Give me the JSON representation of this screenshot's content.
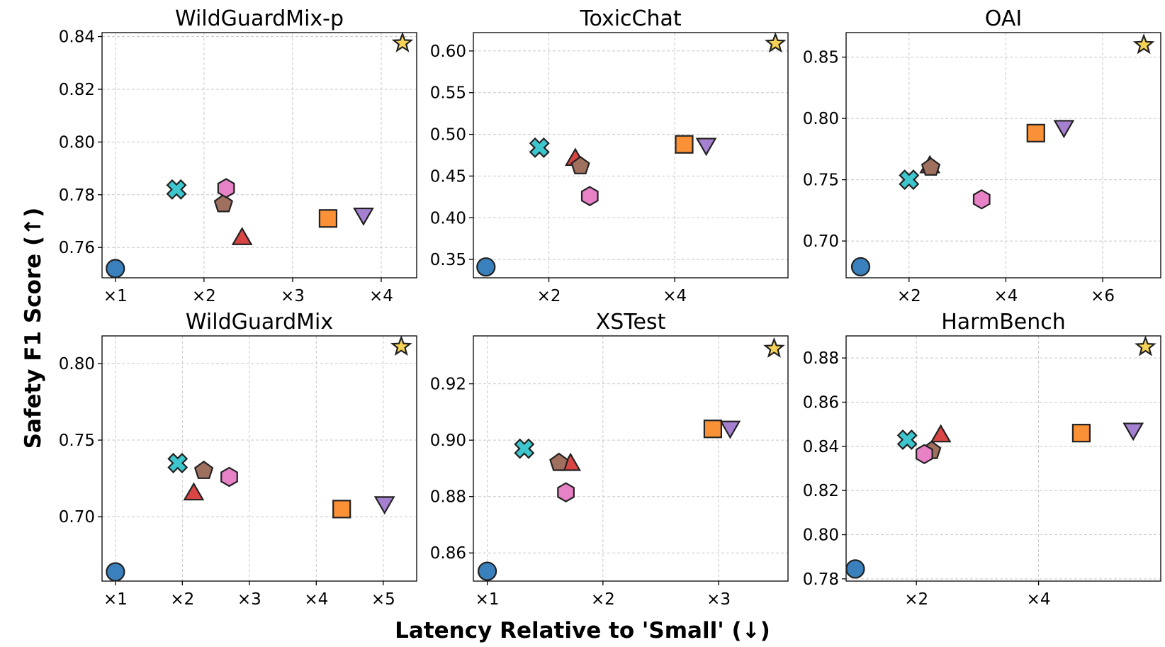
{
  "chart_data": {
    "type": "scatter",
    "xlabel": "Latency Relative to 'Small' (↓)",
    "ylabel": "Safety F1 Score (↑)",
    "series_styles": [
      {
        "key": "s1",
        "marker": "circle",
        "color": "#3a80bd"
      },
      {
        "key": "s2",
        "marker": "x",
        "color": "#3ec6ce"
      },
      {
        "key": "s3",
        "marker": "triangle-up",
        "color": "#d94545"
      },
      {
        "key": "s4",
        "marker": "pentagon",
        "color": "#a0705f"
      },
      {
        "key": "s5",
        "marker": "hexagon",
        "color": "#e882c7"
      },
      {
        "key": "s6",
        "marker": "square",
        "color": "#fb9136"
      },
      {
        "key": "s7",
        "marker": "triangle-down",
        "color": "#a680d0"
      },
      {
        "key": "s8",
        "marker": "star",
        "color": "#f6d256"
      }
    ],
    "panels": [
      {
        "title": "WildGuardMix-p",
        "xlim": [
          0.85,
          4.4
        ],
        "ylim": [
          0.7485,
          0.8415
        ],
        "xticks": [
          1,
          2,
          3,
          4
        ],
        "xtick_labels": [
          "×1",
          "×2",
          "×3",
          "×4"
        ],
        "yticks": [
          0.76,
          0.78,
          0.8,
          0.82,
          0.84
        ],
        "ytick_labels": [
          "0.76",
          "0.78",
          "0.80",
          "0.82",
          "0.84"
        ],
        "points": [
          {
            "series": "s1",
            "x": 1.0,
            "y": 0.752
          },
          {
            "series": "s2",
            "x": 1.69,
            "y": 0.782
          },
          {
            "series": "s3",
            "x": 2.43,
            "y": 0.764
          },
          {
            "series": "s4",
            "x": 2.22,
            "y": 0.7765
          },
          {
            "series": "s5",
            "x": 2.25,
            "y": 0.7825
          },
          {
            "series": "s6",
            "x": 3.4,
            "y": 0.771
          },
          {
            "series": "s7",
            "x": 3.8,
            "y": 0.772
          },
          {
            "series": "s8",
            "x": 4.24,
            "y": 0.8375
          }
        ]
      },
      {
        "title": "ToxicChat",
        "xlim": [
          0.8,
          5.8
        ],
        "ylim": [
          0.328,
          0.622
        ],
        "xticks": [
          2,
          4
        ],
        "xtick_labels": [
          "×2",
          "×4"
        ],
        "yticks": [
          0.35,
          0.4,
          0.45,
          0.5,
          0.55,
          0.6
        ],
        "ytick_labels": [
          "0.35",
          "0.40",
          "0.45",
          "0.50",
          "0.55",
          "0.60"
        ],
        "points": [
          {
            "series": "s1",
            "x": 1.0,
            "y": 0.341
          },
          {
            "series": "s2",
            "x": 1.85,
            "y": 0.484
          },
          {
            "series": "s3",
            "x": 2.42,
            "y": 0.472
          },
          {
            "series": "s4",
            "x": 2.5,
            "y": 0.462
          },
          {
            "series": "s5",
            "x": 2.65,
            "y": 0.426
          },
          {
            "series": "s6",
            "x": 4.15,
            "y": 0.488
          },
          {
            "series": "s7",
            "x": 4.5,
            "y": 0.486
          },
          {
            "series": "s8",
            "x": 5.6,
            "y": 0.609
          }
        ]
      },
      {
        "title": "OAI",
        "xlim": [
          0.7,
          7.2
        ],
        "ylim": [
          0.67,
          0.87
        ],
        "xticks": [
          2,
          4,
          6
        ],
        "xtick_labels": [
          "×2",
          "×4",
          "×6"
        ],
        "yticks": [
          0.7,
          0.75,
          0.8,
          0.85
        ],
        "ytick_labels": [
          "0.70",
          "0.75",
          "0.80",
          "0.85"
        ],
        "points": [
          {
            "series": "s1",
            "x": 1.0,
            "y": 0.679
          },
          {
            "series": "s2",
            "x": 2.0,
            "y": 0.75
          },
          {
            "series": "s3",
            "x": 2.43,
            "y": 0.762
          },
          {
            "series": "s4",
            "x": 2.45,
            "y": 0.76
          },
          {
            "series": "s5",
            "x": 3.5,
            "y": 0.734
          },
          {
            "series": "s6",
            "x": 4.62,
            "y": 0.788
          },
          {
            "series": "s7",
            "x": 5.2,
            "y": 0.792
          },
          {
            "series": "s8",
            "x": 6.85,
            "y": 0.86
          }
        ]
      },
      {
        "title": "WildGuardMix",
        "xlim": [
          0.8,
          5.5
        ],
        "ylim": [
          0.658,
          0.818
        ],
        "xticks": [
          1,
          2,
          3,
          4,
          5
        ],
        "xtick_labels": [
          "×1",
          "×2",
          "×3",
          "×4",
          "×5"
        ],
        "yticks": [
          0.7,
          0.75,
          0.8
        ],
        "ytick_labels": [
          "0.70",
          "0.75",
          "0.80"
        ],
        "points": [
          {
            "series": "s1",
            "x": 1.0,
            "y": 0.664
          },
          {
            "series": "s2",
            "x": 1.93,
            "y": 0.735
          },
          {
            "series": "s3",
            "x": 2.17,
            "y": 0.716
          },
          {
            "series": "s4",
            "x": 2.32,
            "y": 0.73
          },
          {
            "series": "s5",
            "x": 2.7,
            "y": 0.726
          },
          {
            "series": "s6",
            "x": 4.38,
            "y": 0.705
          },
          {
            "series": "s7",
            "x": 5.02,
            "y": 0.708
          },
          {
            "series": "s8",
            "x": 5.27,
            "y": 0.811
          }
        ]
      },
      {
        "title": "XSTest",
        "xlim": [
          0.88,
          3.6
        ],
        "ylim": [
          0.85,
          0.937
        ],
        "xticks": [
          1,
          2,
          3
        ],
        "xtick_labels": [
          "×1",
          "×2",
          "×3"
        ],
        "yticks": [
          0.86,
          0.88,
          0.9,
          0.92
        ],
        "ytick_labels": [
          "0.86",
          "0.88",
          "0.90",
          "0.92"
        ],
        "points": [
          {
            "series": "s1",
            "x": 1.0,
            "y": 0.8535
          },
          {
            "series": "s2",
            "x": 1.32,
            "y": 0.897
          },
          {
            "series": "s3",
            "x": 1.72,
            "y": 0.892
          },
          {
            "series": "s4",
            "x": 1.62,
            "y": 0.892
          },
          {
            "series": "s5",
            "x": 1.68,
            "y": 0.8815
          },
          {
            "series": "s6",
            "x": 2.95,
            "y": 0.904
          },
          {
            "series": "s7",
            "x": 3.1,
            "y": 0.904
          },
          {
            "series": "s8",
            "x": 3.48,
            "y": 0.9325
          }
        ]
      },
      {
        "title": "HarmBench",
        "xlim": [
          0.85,
          6.0
        ],
        "ylim": [
          0.779,
          0.89
        ],
        "xticks": [
          2,
          4
        ],
        "xtick_labels": [
          "×2",
          "×4"
        ],
        "yticks": [
          0.78,
          0.8,
          0.82,
          0.84,
          0.86,
          0.88
        ],
        "ytick_labels": [
          "0.78",
          "0.80",
          "0.82",
          "0.84",
          "0.86",
          "0.88"
        ],
        "points": [
          {
            "series": "s1",
            "x": 1.0,
            "y": 0.7845
          },
          {
            "series": "s2",
            "x": 1.85,
            "y": 0.843
          },
          {
            "series": "s3",
            "x": 2.4,
            "y": 0.8455
          },
          {
            "series": "s4",
            "x": 2.25,
            "y": 0.838
          },
          {
            "series": "s5",
            "x": 2.13,
            "y": 0.8365
          },
          {
            "series": "s6",
            "x": 4.7,
            "y": 0.846
          },
          {
            "series": "s7",
            "x": 5.55,
            "y": 0.847
          },
          {
            "series": "s8",
            "x": 5.75,
            "y": 0.885
          }
        ]
      }
    ]
  }
}
